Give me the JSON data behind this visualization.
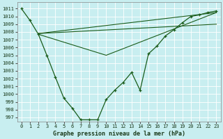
{
  "background_color": "#c8eef0",
  "grid_color": "#ffffff",
  "line_color": "#1a5c1a",
  "xlabel": "Graphe pression niveau de la mer (hPa)",
  "xlim": [
    -0.5,
    23.5
  ],
  "ylim": [
    996.5,
    1011.8
  ],
  "yticks": [
    997,
    998,
    999,
    1000,
    1001,
    1002,
    1003,
    1004,
    1005,
    1006,
    1007,
    1008,
    1009,
    1010,
    1011
  ],
  "xticks": [
    0,
    1,
    2,
    3,
    4,
    5,
    6,
    7,
    8,
    9,
    10,
    11,
    12,
    13,
    14,
    15,
    16,
    17,
    18,
    19,
    20,
    21,
    22,
    23
  ],
  "series": [
    {
      "x": [
        0,
        1,
        2,
        3,
        4,
        5,
        6,
        7,
        8,
        9,
        10,
        11,
        12,
        13,
        14,
        15,
        16,
        17,
        18,
        19,
        20,
        21,
        22,
        23
      ],
      "y": [
        1011.0,
        1009.5,
        1007.7,
        1005.0,
        1002.2,
        999.5,
        998.2,
        996.7,
        996.7,
        996.7,
        999.3,
        1000.5,
        1001.5,
        1002.8,
        1000.5,
        1005.2,
        1006.2,
        1007.5,
        1008.3,
        1009.2,
        1010.0,
        1010.2,
        1010.5,
        1010.7
      ]
    },
    {
      "x": [
        2,
        23
      ],
      "y": [
        1007.8,
        1010.5
      ]
    },
    {
      "x": [
        2,
        23
      ],
      "y": [
        1007.8,
        1009.0
      ]
    },
    {
      "x": [
        2,
        10,
        23
      ],
      "y": [
        1007.7,
        1005.0,
        1010.5
      ]
    }
  ]
}
